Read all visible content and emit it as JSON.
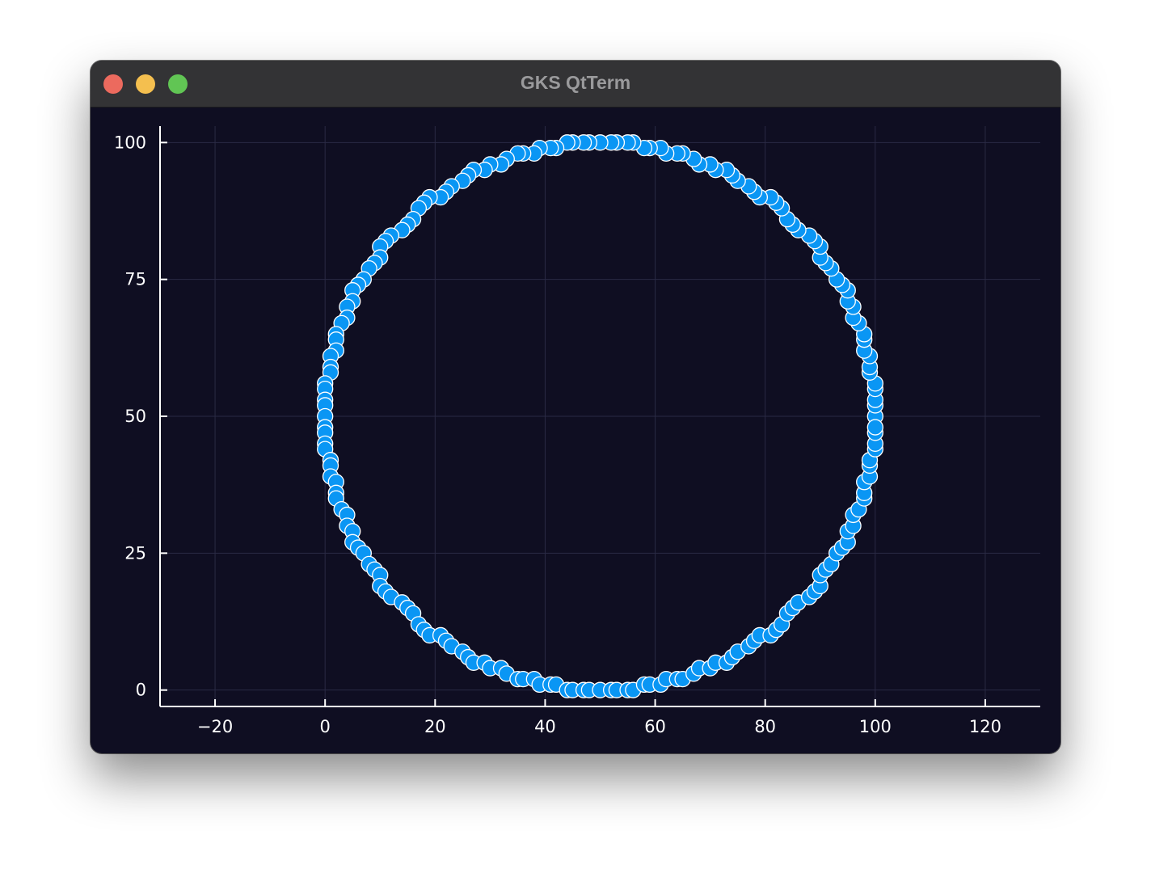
{
  "window": {
    "title": "GKS QtTerm"
  },
  "colors": {
    "background": "#0f0e22",
    "marker_fill": "#0a96f4",
    "marker_stroke": "#ffffff",
    "axis": "#ffffff",
    "grid": "#2a2a44"
  },
  "chart_data": {
    "type": "scatter",
    "title": "",
    "xlabel": "",
    "ylabel": "",
    "xlim": [
      -30,
      130
    ],
    "ylim": [
      -3,
      103
    ],
    "xticks": [
      -20,
      0,
      20,
      40,
      60,
      80,
      100,
      120
    ],
    "xtick_labels": [
      "−20",
      "0",
      "20",
      "40",
      "60",
      "80",
      "100",
      "120"
    ],
    "yticks": [
      0,
      25,
      50,
      75,
      100
    ],
    "ytick_labels": [
      "0",
      "25",
      "50",
      "75",
      "100"
    ],
    "grid": true,
    "legend": false,
    "series": [
      {
        "shape": "circle",
        "center": [
          50,
          50
        ],
        "radius": 50,
        "point_count": 200,
        "rounding": "integer"
      }
    ]
  }
}
